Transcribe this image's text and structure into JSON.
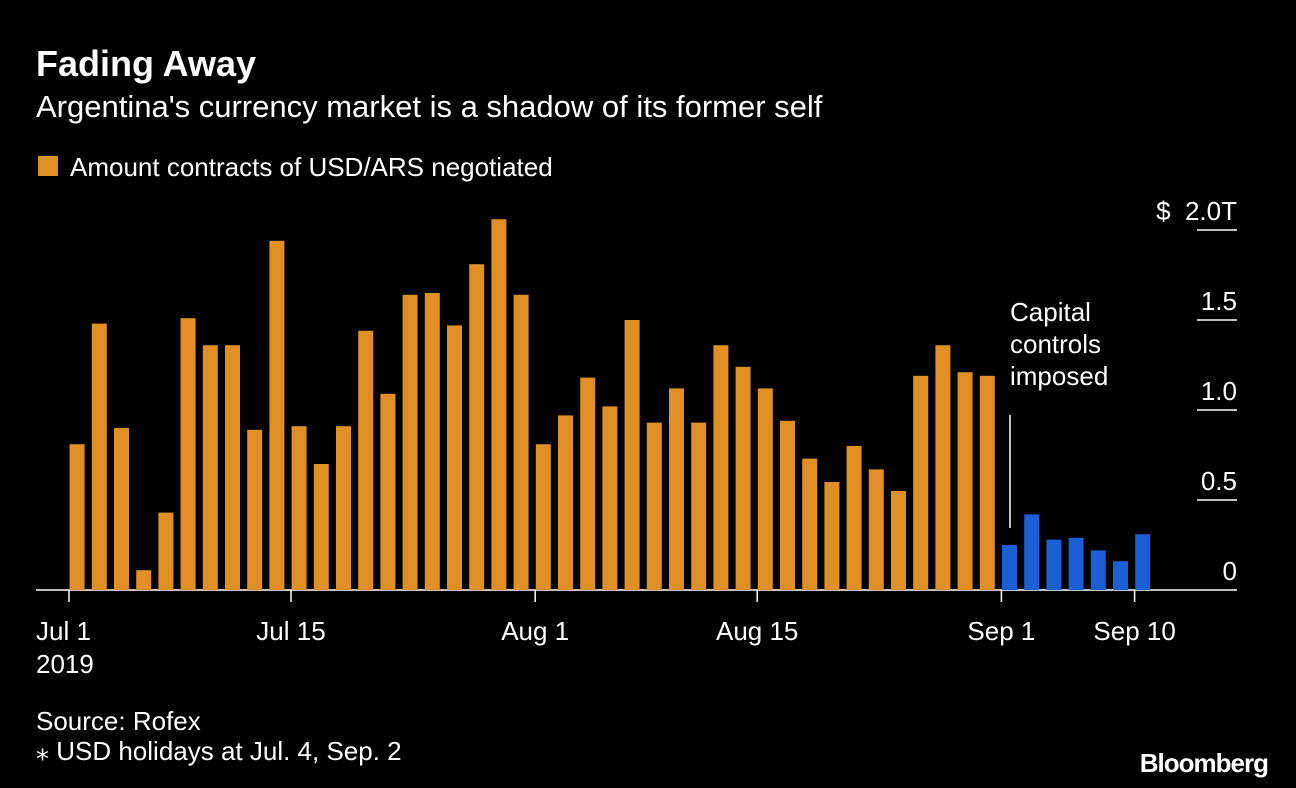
{
  "chart_data": {
    "type": "bar",
    "title": "Fading Away",
    "subtitle": "Argentina's currency market is a shadow of its former self",
    "categories": [
      "Jul 1",
      null,
      null,
      null,
      null,
      null,
      null,
      null,
      null,
      null,
      "Jul 15",
      null,
      null,
      null,
      null,
      null,
      null,
      null,
      null,
      null,
      null,
      "Aug 1",
      null,
      null,
      null,
      null,
      null,
      null,
      null,
      null,
      null,
      "Aug 15",
      null,
      null,
      null,
      null,
      null,
      null,
      null,
      null,
      null,
      null,
      "Sep 1",
      null,
      null,
      null,
      null,
      null,
      "Sep 10"
    ],
    "x_sublabel": "2019",
    "series": [
      {
        "name": "Amount contracts of USD/ARS negotiated",
        "color": "#e08f25",
        "values": [
          0.81,
          1.48,
          0.9,
          0.11,
          0.43,
          1.51,
          1.36,
          1.36,
          0.89,
          1.94,
          0.91,
          0.7,
          0.91,
          1.44,
          1.09,
          1.64,
          1.65,
          1.47,
          1.81,
          2.06,
          1.64,
          0.81,
          0.97,
          1.18,
          1.02,
          1.5,
          0.93,
          1.12,
          0.93,
          1.36,
          1.24,
          1.12,
          0.94,
          0.73,
          0.6,
          0.8,
          0.67,
          0.55,
          1.19,
          1.36,
          1.21,
          1.19,
          null,
          null,
          null,
          null,
          null,
          null,
          null
        ]
      },
      {
        "color": "#1a5fd6",
        "values": [
          null,
          null,
          null,
          null,
          null,
          null,
          null,
          null,
          null,
          null,
          null,
          null,
          null,
          null,
          null,
          null,
          null,
          null,
          null,
          null,
          null,
          null,
          null,
          null,
          null,
          null,
          null,
          null,
          null,
          null,
          null,
          null,
          null,
          null,
          null,
          null,
          null,
          null,
          null,
          null,
          null,
          null,
          0.25,
          0.42,
          0.28,
          0.29,
          0.22,
          0.16,
          0.31
        ]
      }
    ],
    "ylim": [
      0,
      2.1
    ],
    "yticks": [
      0,
      0.5,
      {
        "value": 1,
        "label": "1.0"
      },
      1.5,
      {
        "value": 2,
        "label": "$  2.0T"
      }
    ],
    "annotation": [
      "Capital",
      "controls",
      "imposed"
    ],
    "source": "Source: Rofex",
    "note": "⁎ USD holidays at Jul. 4, Sep. 2",
    "brand": "Bloomberg"
  }
}
